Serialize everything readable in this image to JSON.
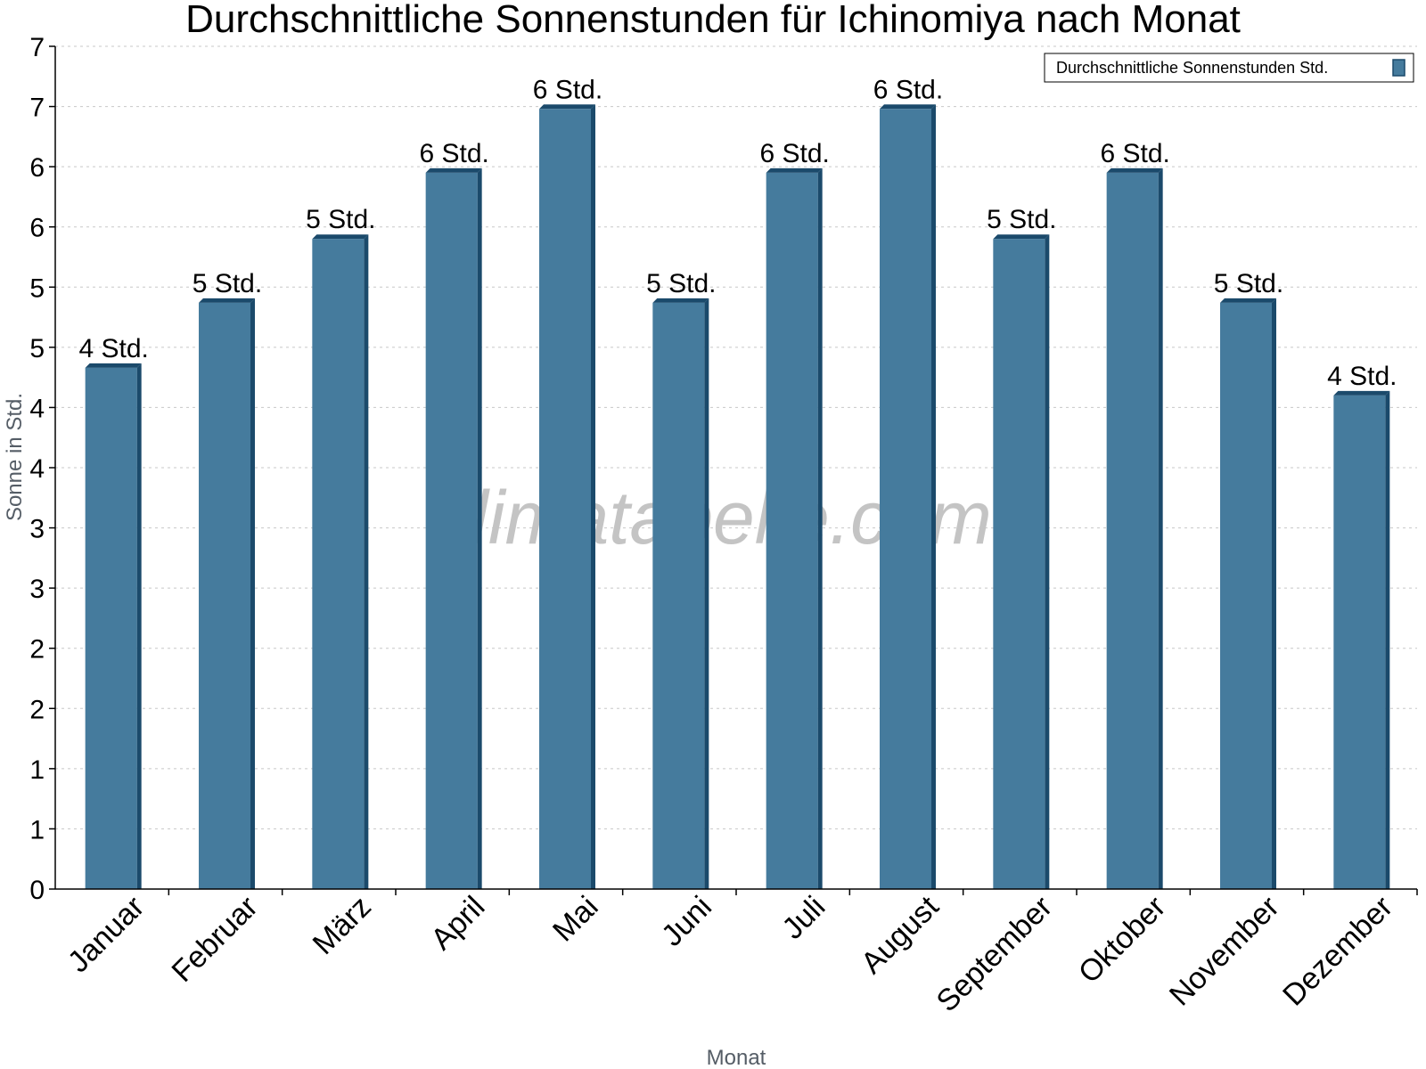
{
  "chart_data": {
    "type": "bar",
    "title": "Durchschnittliche Sonnenstunden für Ichinomiya nach Monat",
    "xlabel": "Monat",
    "ylabel": "Sonne in Std.",
    "ylim": [
      0,
      7
    ],
    "y_ticks": [
      0,
      0.5,
      1,
      1.5,
      2,
      2.5,
      3,
      3.5,
      4,
      4.5,
      5,
      5.5,
      6,
      6.5,
      7
    ],
    "y_tick_labels": [
      "0",
      "1",
      "1",
      "2",
      "2",
      "3",
      "3",
      "4",
      "4",
      "5",
      "5",
      "6",
      "6",
      "7",
      "7"
    ],
    "grid": true,
    "legend_position": "top-right",
    "categories": [
      "Januar",
      "Februar",
      "März",
      "April",
      "Mai",
      "Juni",
      "Juli",
      "August",
      "September",
      "Oktober",
      "November",
      "Dezember"
    ],
    "series": [
      {
        "name": "Durchschnittliche Sonnenstunden Std.",
        "color": "#457b9d",
        "values": [
          4.33,
          4.87,
          5.4,
          5.95,
          6.48,
          4.87,
          5.95,
          6.48,
          5.4,
          5.95,
          4.87,
          4.1
        ],
        "data_labels": [
          "4 Std.",
          "5 Std.",
          "5 Std.",
          "6 Std.",
          "6 Std.",
          "5 Std.",
          "6 Std.",
          "6 Std.",
          "5 Std.",
          "6 Std.",
          "5 Std.",
          "4 Std."
        ]
      }
    ],
    "watermark": "klimatabelle.com"
  },
  "colors": {
    "bar_face": "#457b9d",
    "bar_side": "#1b4a6b",
    "grid": "#c8c8c8",
    "axis": "#000000"
  }
}
